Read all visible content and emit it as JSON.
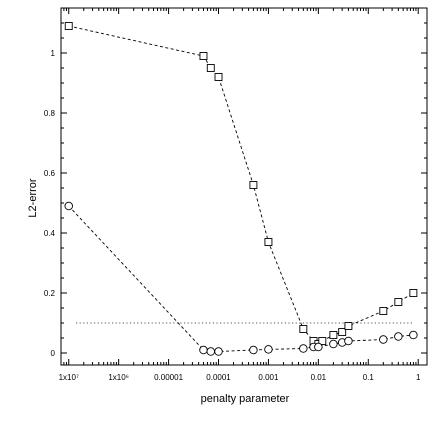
{
  "chart_data": {
    "type": "scatter",
    "xlabel": "penalty parameter",
    "ylabel": "L2-error",
    "x_scale": "log",
    "xlim": [
      7e-08,
      1.5
    ],
    "ylim": [
      -0.04,
      1.15
    ],
    "grid": false,
    "x_ticks": [
      1e-07,
      1e-06,
      1e-05,
      0.0001,
      0.001,
      0.01,
      0.1,
      1
    ],
    "x_tick_labels": [
      "1x10⁷",
      "1x10⁶",
      "0.00001",
      "0.0001",
      "0.001",
      "0.01",
      "0.1",
      "1"
    ],
    "y_ticks": [
      0,
      0.2,
      0.4,
      0.6,
      0.8,
      1
    ],
    "y_tick_labels": [
      "0",
      "0.2",
      "0.4",
      "0.6",
      "0.8",
      "1"
    ],
    "reference_line": {
      "y": 0.1,
      "style": "dotted"
    },
    "series": [
      {
        "marker": "square",
        "line": "dashed",
        "x": [
          1e-07,
          5e-05,
          7e-05,
          0.0001,
          0.0005,
          0.001,
          0.005,
          0.008,
          0.01,
          0.012,
          0.02,
          0.03,
          0.04,
          0.2,
          0.4,
          0.8
        ],
        "values": [
          1.09,
          0.99,
          0.95,
          0.92,
          0.56,
          0.37,
          0.08,
          0.04,
          0.03,
          0.04,
          0.06,
          0.07,
          0.09,
          0.14,
          0.17,
          0.2
        ]
      },
      {
        "marker": "circle",
        "line": "dashed",
        "x": [
          1e-07,
          5e-05,
          7e-05,
          0.0001,
          0.0005,
          0.001,
          0.005,
          0.008,
          0.01,
          0.02,
          0.03,
          0.04,
          0.2,
          0.4,
          0.8
        ],
        "values": [
          0.49,
          0.01,
          0.005,
          0.005,
          0.01,
          0.012,
          0.015,
          0.02,
          0.02,
          0.03,
          0.035,
          0.04,
          0.045,
          0.055,
          0.06
        ]
      }
    ]
  }
}
